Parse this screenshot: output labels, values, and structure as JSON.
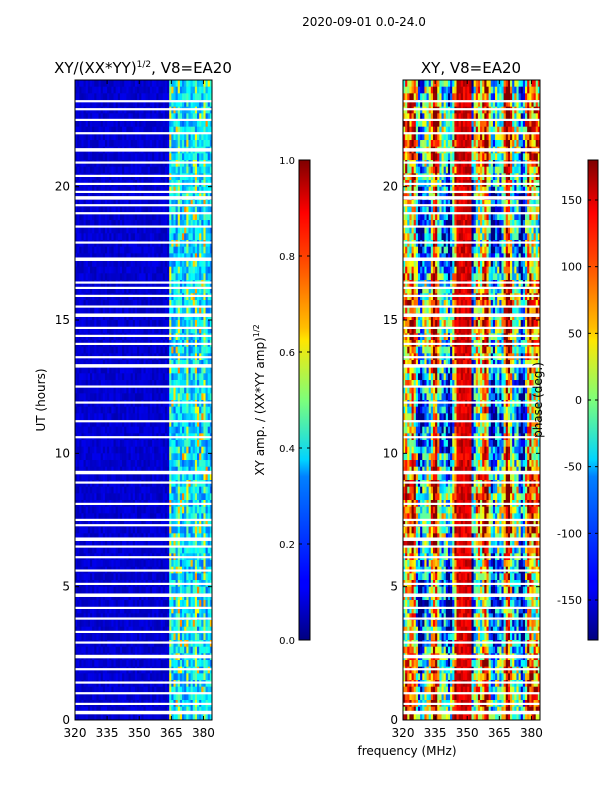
{
  "figure_title": "2020-09-01 0.0-24.0",
  "shared_xlabel": "frequency (MHz)",
  "chart_data": [
    {
      "type": "heatmap",
      "title_main": "XY/(XX*YY)",
      "title_exp": "1/2",
      "title_tail": ", V8=EA20",
      "xlabel": "frequency (MHz)",
      "ylabel": "UT (hours)",
      "xlim": [
        320,
        384
      ],
      "ylim": [
        0,
        24
      ],
      "x_ticks": [
        320,
        335,
        350,
        365,
        380
      ],
      "y_ticks": [
        0,
        5,
        10,
        15,
        20
      ],
      "colorbar": {
        "label_main": "XY amp. / (XX*YY amp)",
        "label_exp": "1/2",
        "range": [
          0.0,
          1.0
        ],
        "ticks": [
          "0.0",
          "0.2",
          "0.4",
          "0.6",
          "0.8",
          "1.0"
        ],
        "colormap": "jet"
      },
      "flagged_hours": [
        0.3,
        0.6,
        1.0,
        1.4,
        1.9,
        2.4,
        2.9,
        3.3,
        3.8,
        4.2,
        4.7,
        5.1,
        5.6,
        6.1,
        6.5,
        6.8,
        7.3,
        7.5,
        8.1,
        8.9,
        9.3,
        10.6,
        11.2,
        11.9,
        12.5,
        13.3,
        13.6,
        14.1,
        14.4,
        14.7,
        15.2,
        15.5,
        15.9,
        16.2,
        16.4,
        17.3,
        17.9,
        18.5,
        19.0,
        19.3,
        19.6,
        19.8,
        20.1,
        20.4,
        20.9,
        21.4,
        22.0,
        22.5,
        22.9,
        23.2
      ],
      "high_band_start_mhz": 364
    },
    {
      "type": "heatmap",
      "title_main": "XY, V8=EA20",
      "xlabel": "frequency (MHz)",
      "ylabel": "",
      "xlim": [
        320,
        384
      ],
      "ylim": [
        0,
        24
      ],
      "x_ticks": [
        320,
        335,
        350,
        365,
        380
      ],
      "y_ticks": [
        0,
        5,
        10,
        15,
        20
      ],
      "colorbar": {
        "label_main": "phase (deg.)",
        "range": [
          -180,
          180
        ],
        "ticks": [
          "-150",
          "-100",
          "-50",
          "0",
          "50",
          "100",
          "150"
        ],
        "colormap": "jet"
      },
      "flagged_hours": [
        0.3,
        0.6,
        1.0,
        1.4,
        1.9,
        2.4,
        2.9,
        3.3,
        3.8,
        4.2,
        4.7,
        5.1,
        5.6,
        6.1,
        6.5,
        6.8,
        7.3,
        7.5,
        8.1,
        8.9,
        9.3,
        10.6,
        11.2,
        11.9,
        12.5,
        13.3,
        13.6,
        14.1,
        14.4,
        14.7,
        15.2,
        15.5,
        15.9,
        16.2,
        16.4,
        17.3,
        17.9,
        18.5,
        19.0,
        19.3,
        19.6,
        19.8,
        20.1,
        20.4,
        20.9,
        21.4,
        22.0,
        22.5,
        22.9,
        23.2
      ]
    }
  ]
}
